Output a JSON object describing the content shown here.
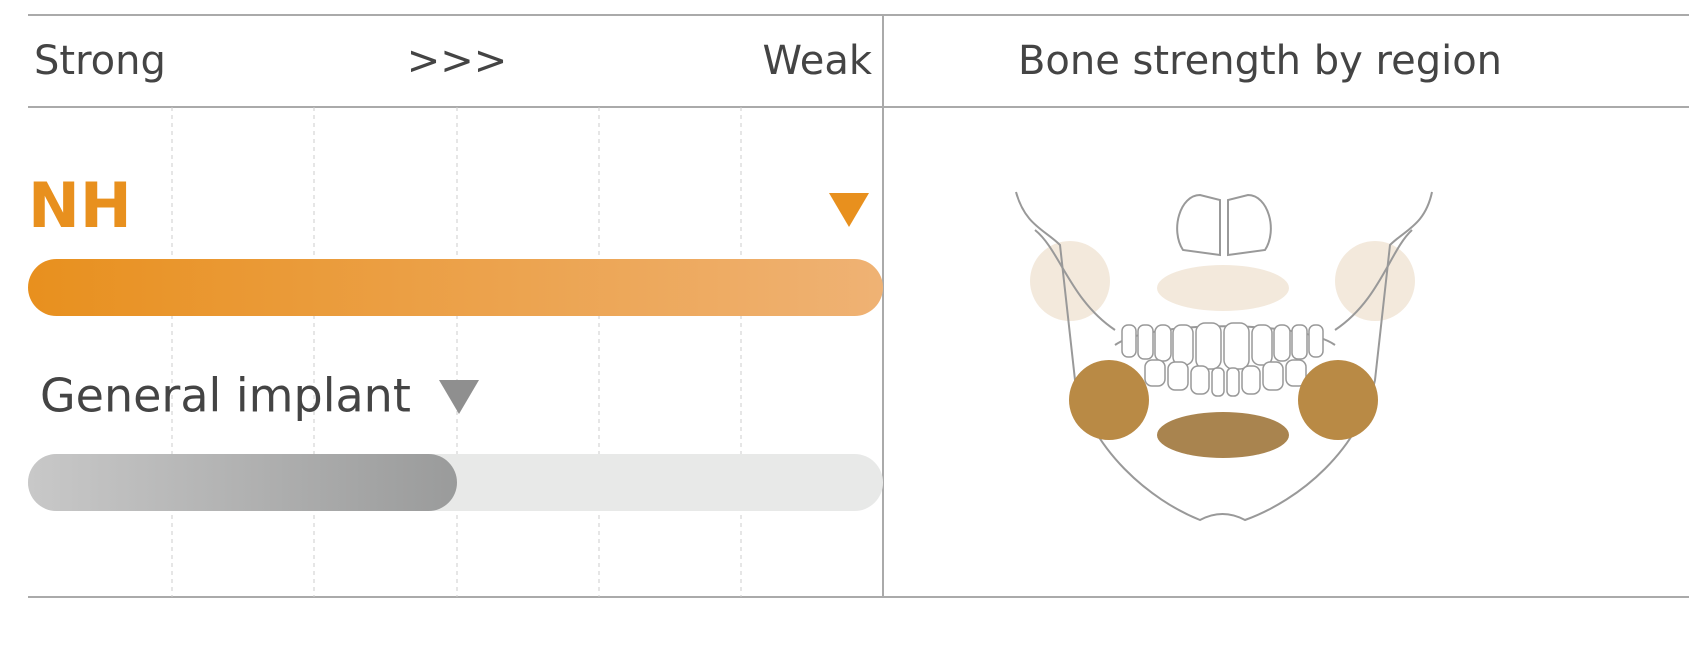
{
  "header": {
    "strong": "Strong",
    "arrows": ">>>",
    "weak": "Weak",
    "region_title": "Bone strength by region"
  },
  "rows": [
    {
      "label": "NH"
    },
    {
      "label": "General implant"
    }
  ]
}
